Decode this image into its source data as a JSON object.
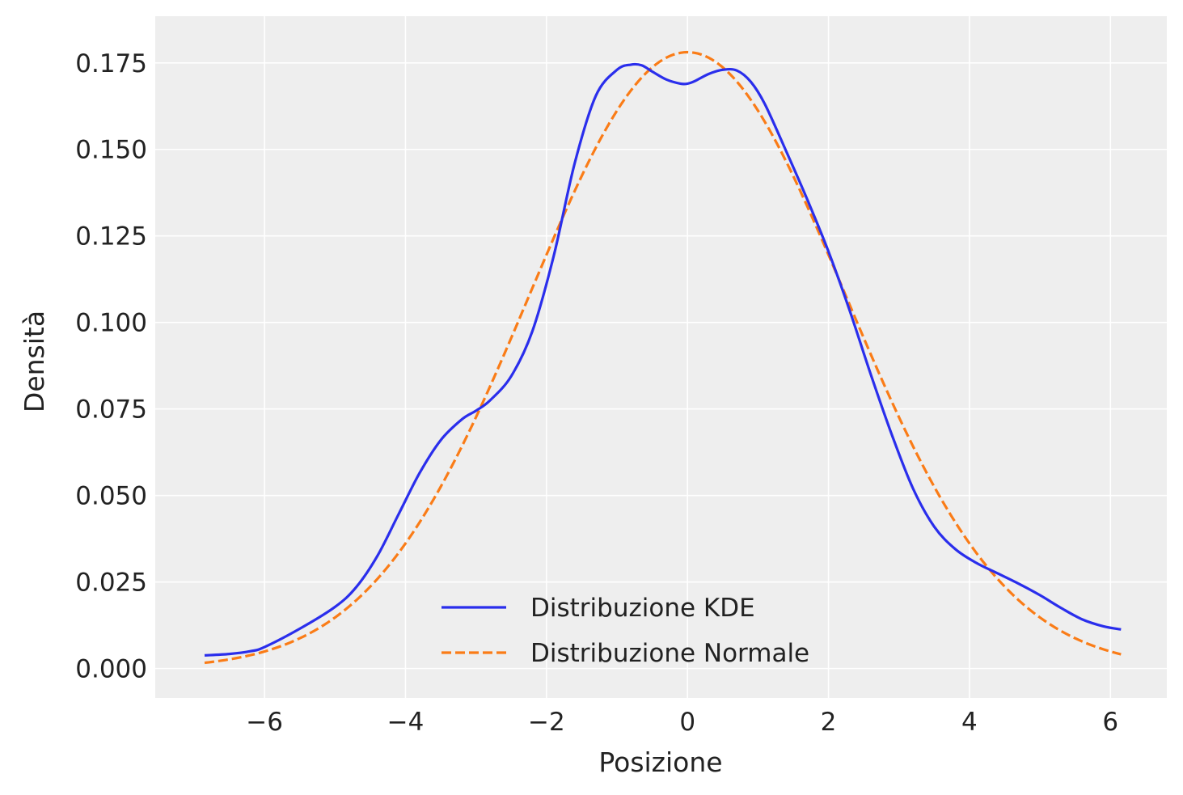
{
  "chart_data": {
    "type": "line",
    "title": "",
    "xlabel": "Posizione",
    "ylabel": "Densità",
    "xlim": [
      -7.55,
      6.8
    ],
    "ylim": [
      -0.0085,
      0.1885
    ],
    "xticks": [
      -6,
      -4,
      -2,
      0,
      2,
      4,
      6
    ],
    "xtick_labels": [
      "−6",
      "−4",
      "−2",
      "0",
      "2",
      "4",
      "6"
    ],
    "yticks": [
      0.0,
      0.025,
      0.05,
      0.075,
      0.1,
      0.125,
      0.15,
      0.175
    ],
    "ytick_labels": [
      "0.000",
      "0.025",
      "0.050",
      "0.075",
      "0.100",
      "0.125",
      "0.150",
      "0.175"
    ],
    "grid": true,
    "legend_position": "bottom-center",
    "series": [
      {
        "name": "Distribuzione KDE",
        "color": "#2a2eec",
        "style": "solid",
        "x": [
          -6.85,
          -6.5,
          -6.2,
          -6.0,
          -5.5,
          -5.0,
          -4.7,
          -4.4,
          -4.1,
          -3.8,
          -3.5,
          -3.2,
          -3.0,
          -2.8,
          -2.5,
          -2.2,
          -1.9,
          -1.6,
          -1.3,
          -1.0,
          -0.8,
          -0.65,
          -0.5,
          -0.3,
          -0.1,
          0.0,
          0.1,
          0.3,
          0.5,
          0.7,
          0.9,
          1.1,
          1.4,
          1.7,
          2.0,
          2.3,
          2.6,
          2.9,
          3.2,
          3.5,
          3.8,
          4.1,
          4.4,
          4.7,
          5.0,
          5.3,
          5.6,
          5.9,
          6.15
        ],
        "y": [
          0.0038,
          0.0042,
          0.005,
          0.0062,
          0.0115,
          0.0178,
          0.0235,
          0.0325,
          0.0445,
          0.0565,
          0.066,
          0.072,
          0.0745,
          0.0775,
          0.0845,
          0.0975,
          0.119,
          0.146,
          0.1655,
          0.173,
          0.1745,
          0.1743,
          0.1725,
          0.1702,
          0.169,
          0.169,
          0.1697,
          0.1718,
          0.173,
          0.1728,
          0.1695,
          0.163,
          0.1495,
          0.1355,
          0.1205,
          0.1035,
          0.085,
          0.0675,
          0.052,
          0.041,
          0.0345,
          0.0305,
          0.0275,
          0.0245,
          0.0212,
          0.0175,
          0.0142,
          0.0122,
          0.0113
        ]
      },
      {
        "name": "Distribuzione Normale",
        "color": "#fa7c17",
        "style": "dashed",
        "mean": 0.0,
        "std": 2.24,
        "x_range": [
          -6.85,
          6.15
        ]
      }
    ]
  }
}
